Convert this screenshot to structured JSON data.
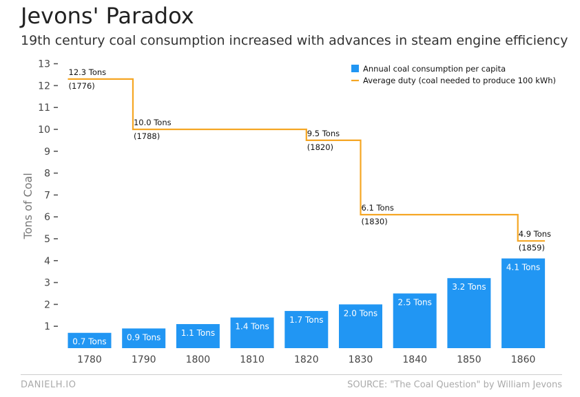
{
  "chart_data": {
    "type": "bar",
    "title": "Jevons' Paradox",
    "subtitle": "19th century coal consumption increased with advances in steam engine efficiency",
    "ylabel": "Tons of Coal",
    "xlabel": "",
    "ylim": [
      0,
      13
    ],
    "yticks": [
      1,
      2,
      3,
      4,
      5,
      6,
      7,
      8,
      9,
      10,
      11,
      12,
      13
    ],
    "grid": false,
    "legend_position": "top-right",
    "categories": [
      "1780",
      "1790",
      "1800",
      "1810",
      "1820",
      "1830",
      "1840",
      "1850",
      "1860"
    ],
    "series": [
      {
        "name": "Annual coal consumption per capita",
        "type": "bar",
        "color": "#2196F3",
        "values": [
          0.7,
          0.9,
          1.1,
          1.4,
          1.7,
          2.0,
          2.5,
          3.2,
          4.1
        ],
        "labels": [
          "0.7 Tons",
          "0.9 Tons",
          "1.1 Tons",
          "1.4 Tons",
          "1.7 Tons",
          "2.0 Tons",
          "2.5 Tons",
          "3.2 Tons",
          "4.1 Tons"
        ]
      },
      {
        "name": "Average duty (coal needed to produce 100 kWh)",
        "type": "step",
        "color": "#F5A623",
        "points": [
          {
            "year": 1776,
            "value": 12.3,
            "label": "12.3 Tons",
            "year_label": "(1776)"
          },
          {
            "year": 1788,
            "value": 10.0,
            "label": "10.0 Tons",
            "year_label": "(1788)"
          },
          {
            "year": 1820,
            "value": 9.5,
            "label": "9.5 Tons",
            "year_label": "(1820)"
          },
          {
            "year": 1830,
            "value": 6.1,
            "label": "6.1 Tons",
            "year_label": "(1830)"
          },
          {
            "year": 1859,
            "value": 4.9,
            "label": "4.9 Tons",
            "year_label": "(1859)"
          }
        ],
        "end_year": 1864
      }
    ]
  },
  "footer": {
    "left": "DANIELH.IO",
    "right": "SOURCE: \"The Coal Question\" by William Jevons"
  }
}
